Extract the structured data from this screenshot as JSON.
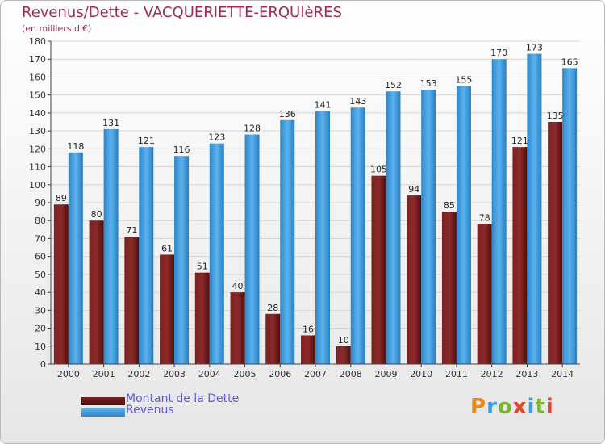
{
  "title": "Revenus/Dette - VACQUERIETTE-ERQUIèRES",
  "subtitle": "(en milliers d'€)",
  "colors": {
    "dette": "#6b1a1a",
    "revenus": "#3d9de0",
    "title": "#a02a4e",
    "legend_text": "#5b5bd6"
  },
  "legend": [
    {
      "label": "Montant de la Dette",
      "color": "#6b1a1a"
    },
    {
      "label": "Revenus",
      "color": "#3d9de0"
    }
  ],
  "logo": {
    "text": "Proxiti",
    "letters": [
      "P",
      "r",
      "o",
      "x",
      "i",
      "t",
      "i"
    ],
    "colors": [
      "#e88a1e",
      "#3d9de0",
      "#7ab32e",
      "#e8452f",
      "#3d9de0",
      "#7ab32e",
      "#e8452f"
    ]
  },
  "chart_data": {
    "type": "bar",
    "categories": [
      "2000",
      "2001",
      "2002",
      "2003",
      "2004",
      "2005",
      "2006",
      "2007",
      "2008",
      "2009",
      "2010",
      "2011",
      "2012",
      "2013",
      "2014"
    ],
    "series": [
      {
        "name": "Montant de la Dette",
        "values": [
          89,
          80,
          71,
          61,
          51,
          40,
          28,
          16,
          10,
          105,
          94,
          85,
          78,
          121,
          135
        ]
      },
      {
        "name": "Revenus",
        "values": [
          118,
          131,
          121,
          116,
          123,
          128,
          136,
          141,
          143,
          152,
          153,
          155,
          170,
          173,
          165
        ]
      }
    ],
    "ylim": [
      0,
      180
    ],
    "yticks": [
      0,
      10,
      20,
      30,
      40,
      50,
      60,
      70,
      80,
      90,
      100,
      110,
      120,
      130,
      140,
      150,
      160,
      170,
      180
    ],
    "grid": true,
    "legend_position": "bottom-left"
  }
}
